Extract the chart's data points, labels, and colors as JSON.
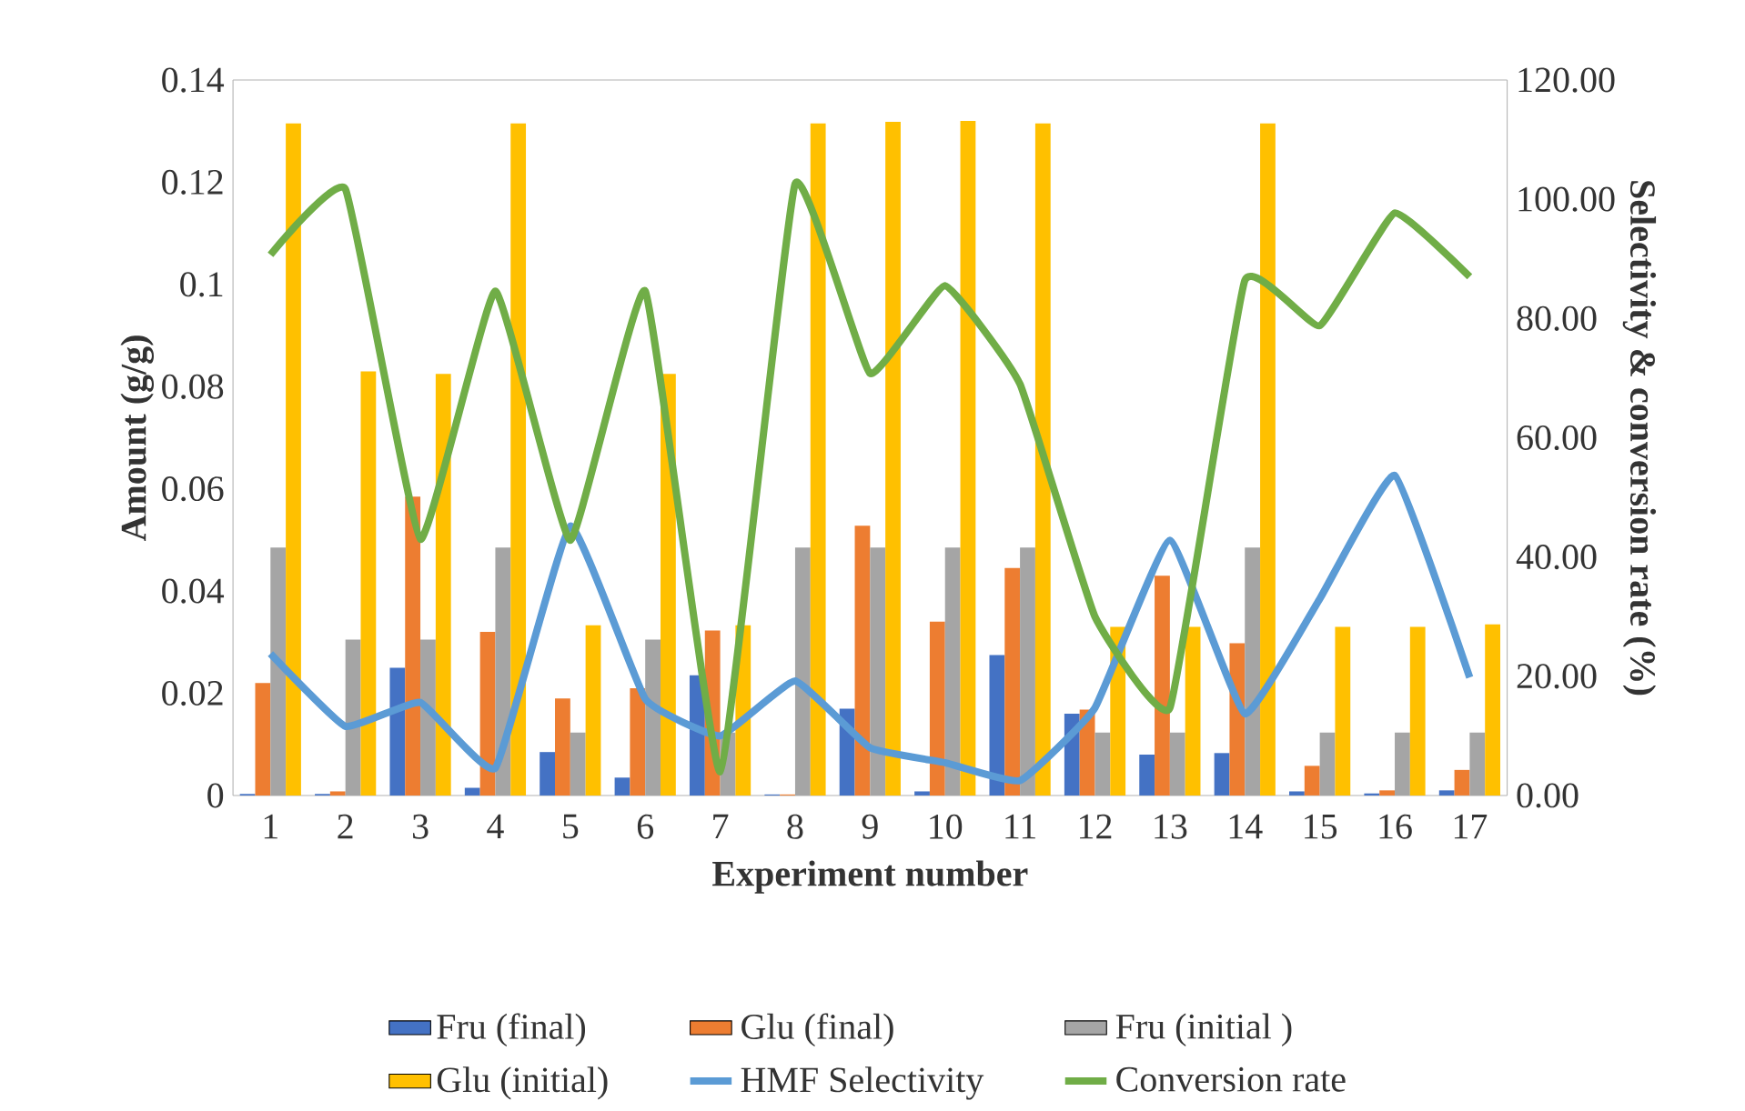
{
  "chart_data": {
    "type": "bar",
    "xlabel": "Experiment number",
    "ylabel": "Amount (g/g)",
    "y2label": "Selectivity & conversion rate (%)",
    "categories": [
      "1",
      "2",
      "3",
      "4",
      "5",
      "6",
      "7",
      "8",
      "9",
      "10",
      "11",
      "12",
      "13",
      "14",
      "15",
      "16",
      "17"
    ],
    "ylim": [
      0,
      0.14
    ],
    "yticks": [
      0,
      0.02,
      0.04,
      0.06,
      0.08,
      0.1,
      0.12,
      0.14
    ],
    "y2lim": [
      0,
      120
    ],
    "y2ticks": [
      {
        "value": 0,
        "label": "0.00"
      },
      {
        "value": 20,
        "label": "20.00"
      },
      {
        "value": 40,
        "label": "40.00"
      },
      {
        "value": 60,
        "label": "60.00"
      },
      {
        "value": 80,
        "label": "80.00"
      },
      {
        "value": 100,
        "label": "100.00"
      },
      {
        "value": 120,
        "label": "120.00"
      }
    ],
    "legend": "bottom",
    "grid": false,
    "series": [
      {
        "name": "Fru (final)",
        "color": "#4472c4",
        "values": [
          0.0003,
          0.0003,
          0.025,
          0.0015,
          0.0085,
          0.0035,
          0.0235,
          0.0002,
          0.017,
          0.0008,
          0.0275,
          0.016,
          0.008,
          0.0083,
          0.0008,
          0.0004,
          0.001
        ]
      },
      {
        "name": "Glu (final)",
        "color": "#ed7d31",
        "values": [
          0.022,
          0.0008,
          0.0585,
          0.032,
          0.019,
          0.021,
          0.0323,
          0.0002,
          0.0528,
          0.034,
          0.0445,
          0.0168,
          0.043,
          0.0298,
          0.0058,
          0.001,
          0.005
        ]
      },
      {
        "name": "Fru (initial )",
        "color": "#a5a5a5",
        "values": [
          0.0485,
          0.0305,
          0.0305,
          0.0485,
          0.0123,
          0.0305,
          0.0123,
          0.0485,
          0.0485,
          0.0485,
          0.0485,
          0.0123,
          0.0123,
          0.0485,
          0.0123,
          0.0123,
          0.0123
        ]
      },
      {
        "name": "Glu (initial)",
        "color": "#ffc000",
        "values": [
          0.1315,
          0.083,
          0.0825,
          0.1315,
          0.0333,
          0.0825,
          0.0333,
          0.1315,
          0.1318,
          0.132,
          0.1315,
          0.033,
          0.033,
          0.1315,
          0.033,
          0.033,
          0.0335
        ]
      },
      {
        "name": "HMF Selectivity",
        "type": "line",
        "axis": "y2",
        "color": "#5b9bd5",
        "values": [
          23.8,
          11.6,
          15.6,
          4.6,
          45.2,
          16.2,
          10,
          19.2,
          8,
          5.5,
          2.5,
          14.7,
          42.8,
          13.7,
          33,
          53.7,
          19.8
        ]
      },
      {
        "name": "Conversion rate",
        "type": "line",
        "axis": "y2",
        "color": "#70ad47",
        "values": [
          90.7,
          101.7,
          43,
          84.6,
          42.8,
          84.6,
          4,
          102.6,
          70.8,
          85.5,
          69,
          30,
          14.7,
          86.4,
          78.8,
          97.7,
          87
        ]
      }
    ]
  }
}
